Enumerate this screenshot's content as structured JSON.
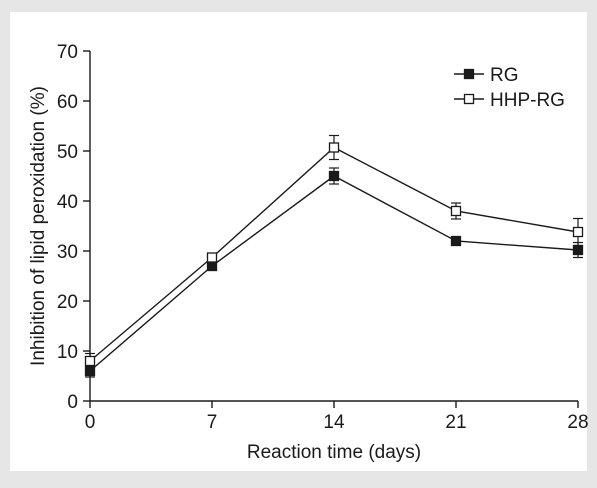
{
  "chart_data": {
    "type": "line",
    "xlabel": "Reaction time (days)",
    "ylabel": "Inhibition of lipid peroxidation (%)",
    "x": [
      0,
      7,
      14,
      21,
      28
    ],
    "xlim": [
      0,
      28
    ],
    "ylim": [
      0,
      70
    ],
    "xticks": [
      0,
      7,
      14,
      21,
      28
    ],
    "yticks": [
      0,
      10,
      20,
      30,
      40,
      50,
      60,
      70
    ],
    "grid": false,
    "legend_position": "top-right",
    "series": [
      {
        "name": "RG",
        "marker": "filled-square",
        "color": "#1a1a1a",
        "values": [
          6.0,
          27.0,
          45.0,
          32.0,
          30.2
        ],
        "errors": [
          1.2,
          0.8,
          1.6,
          0.5,
          1.5
        ]
      },
      {
        "name": "HHP-RG",
        "marker": "open-square",
        "color": "#1a1a1a",
        "values": [
          8.0,
          28.7,
          50.7,
          38.0,
          33.8
        ],
        "errors": [
          1.5,
          0.8,
          2.4,
          1.6,
          2.7
        ]
      }
    ]
  }
}
